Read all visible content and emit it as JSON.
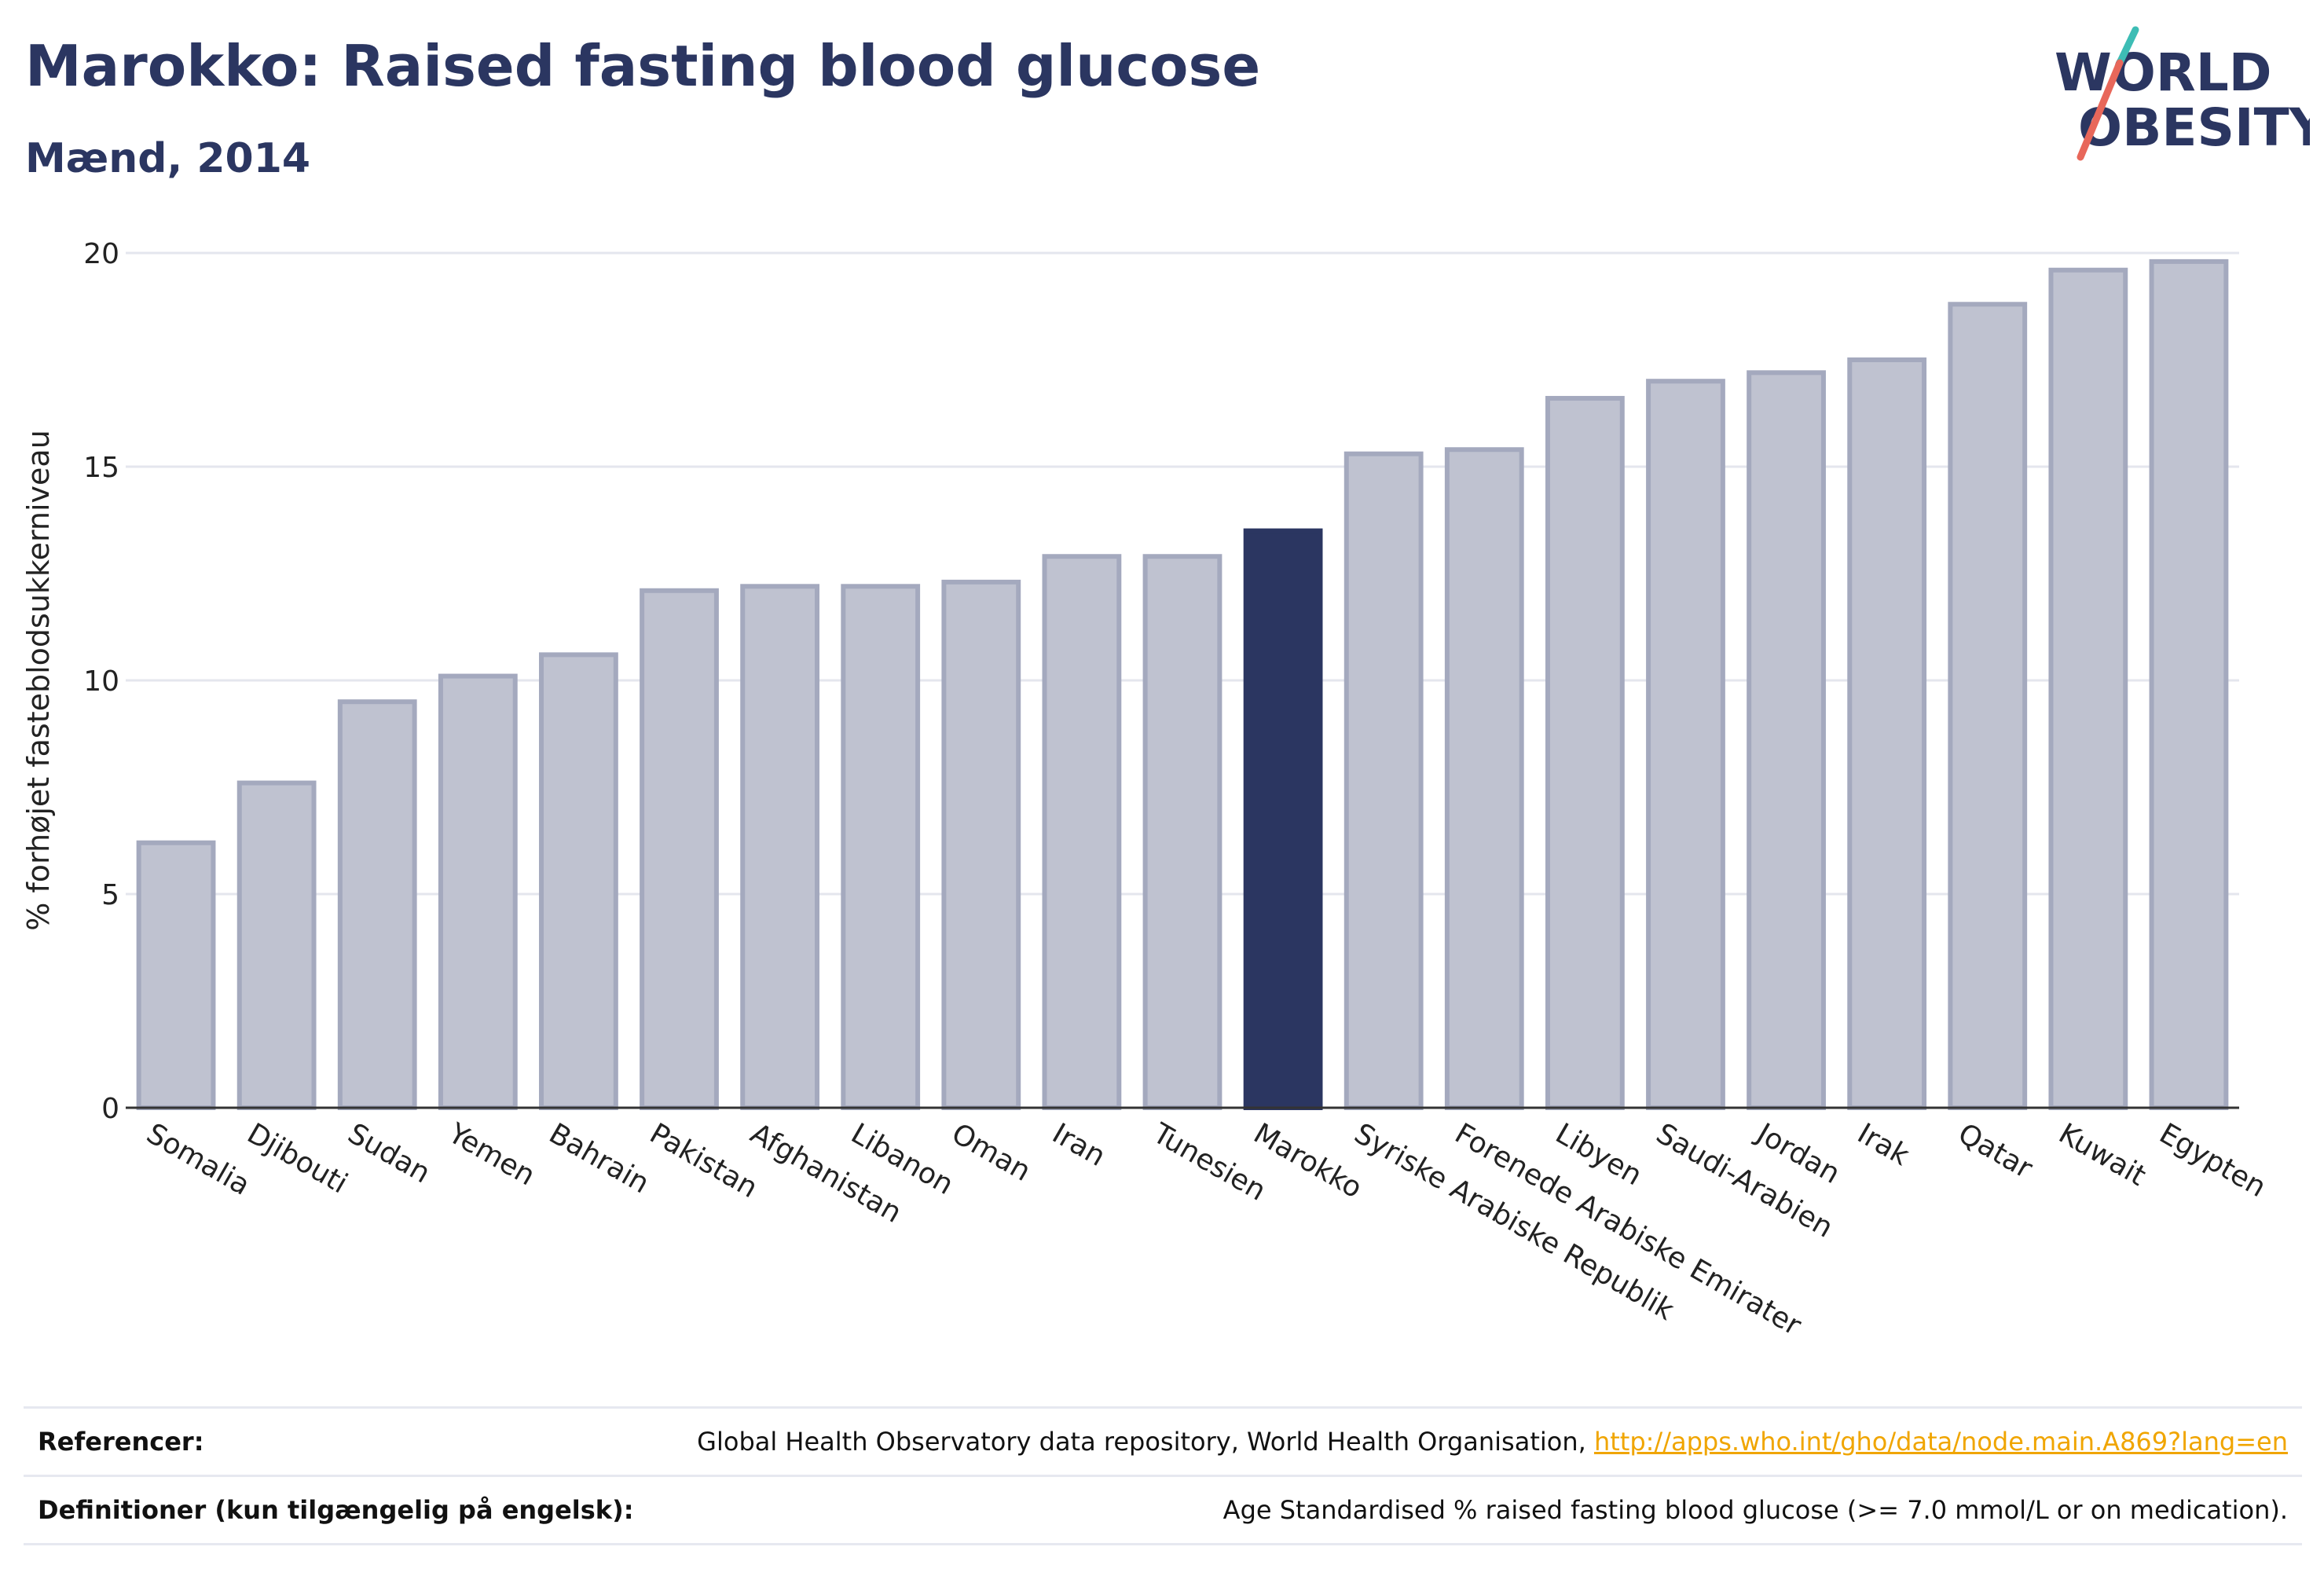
{
  "title": "Marokko: Raised fasting blood glucose",
  "subtitle": "Mænd, 2014",
  "logo": {
    "line1": "WORLD",
    "line2": "OBESITY"
  },
  "colors": {
    "highlight": "#2b3661",
    "bar": "#bfc2d0",
    "bar_border": "#a4a9be",
    "grid": "#e4e6ee",
    "accent_teal": "#3dbdb5",
    "accent_red": "#e8675a",
    "link": "#f0a500"
  },
  "chart_data": {
    "type": "bar",
    "ylabel": "% forhøjet fasteblodsukkerniveau",
    "ylim": [
      0,
      20
    ],
    "yticks": [
      0,
      5,
      10,
      15,
      20
    ],
    "highlight": "Marokko",
    "categories": [
      "Somalia",
      "Djibouti",
      "Sudan",
      "Yemen",
      "Bahrain",
      "Pakistan",
      "Afghanistan",
      "Libanon",
      "Oman",
      "Iran",
      "Tunesien",
      "Marokko",
      "Syriske Arabiske Republik",
      "Forenede Arabiske Emirater",
      "Libyen",
      "Saudi-Arabien",
      "Jordan",
      "Irak",
      "Qatar",
      "Kuwait",
      "Egypten"
    ],
    "values": [
      6.2,
      7.6,
      9.5,
      10.1,
      10.6,
      12.1,
      12.2,
      12.2,
      12.3,
      12.9,
      12.9,
      13.5,
      15.3,
      15.4,
      16.6,
      17.0,
      17.2,
      17.5,
      18.8,
      19.6,
      19.8
    ]
  },
  "footer": {
    "ref_label": "Referencer:",
    "ref_text": "Global Health Observatory data repository, World Health Organisation, ",
    "ref_link": "http://apps.who.int/gho/data/node.main.A869?lang=en",
    "def_label": "Definitioner (kun tilgængelig på engelsk):",
    "def_text": "Age Standardised % raised fasting blood glucose (>= 7.0 mmol/L or on medication)."
  }
}
